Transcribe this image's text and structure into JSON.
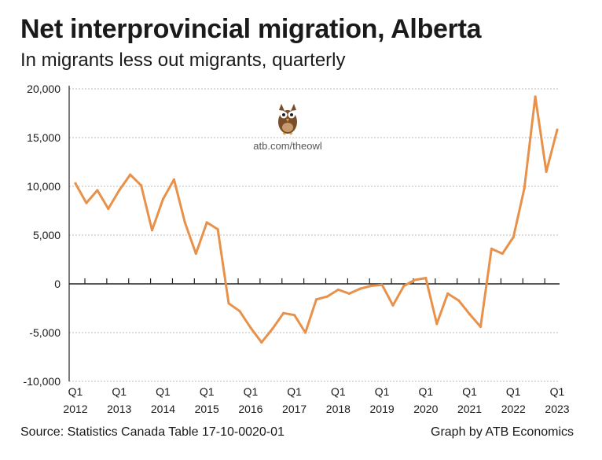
{
  "header": {
    "title": "Net interprovincial migration, Alberta",
    "subtitle": "In migrants less out migrants, quarterly"
  },
  "footer": {
    "source": "Source: Statistics Canada Table 17-10-0020-01",
    "credit": "Graph by ATB Economics"
  },
  "watermark": {
    "icon": "owl-icon",
    "text": "atb.com/theowl"
  },
  "colors": {
    "line": "#E8914A",
    "grid": "#bdbdbd",
    "axis": "#222222"
  },
  "chart_data": {
    "type": "line",
    "title": "Net interprovincial migration, Alberta",
    "subtitle": "In migrants less out migrants, quarterly",
    "xlabel": "",
    "ylabel": "",
    "ylim": [
      -10000,
      20000
    ],
    "yticks": [
      20000,
      15000,
      10000,
      5000,
      0,
      -5000,
      -10000
    ],
    "ytick_labels": [
      "20,000",
      "15,000",
      "10,000",
      "5,000",
      "0",
      "-5,000",
      "-10,000"
    ],
    "grid": true,
    "x_tick_labels": [
      {
        "q": "Q1",
        "year": "2012"
      },
      {
        "q": "Q1",
        "year": "2013"
      },
      {
        "q": "Q1",
        "year": "2014"
      },
      {
        "q": "Q1",
        "year": "2015"
      },
      {
        "q": "Q1",
        "year": "2016"
      },
      {
        "q": "Q1",
        "year": "2017"
      },
      {
        "q": "Q1",
        "year": "2018"
      },
      {
        "q": "Q1",
        "year": "2019"
      },
      {
        "q": "Q1",
        "year": "2020"
      },
      {
        "q": "Q1",
        "year": "2021"
      },
      {
        "q": "Q1",
        "year": "2022"
      },
      {
        "q": "Q1",
        "year": "2023"
      }
    ],
    "series": [
      {
        "values": [
          10300,
          8300,
          9600,
          7700,
          9600,
          11200,
          10100,
          5500,
          8700,
          10700,
          6300,
          3100,
          6300,
          5600,
          -2000,
          -2800,
          -4500,
          -6000,
          -4600,
          -3000,
          -3200,
          -5000,
          -1600,
          -1300,
          -600,
          -1000,
          -500,
          -200,
          -100,
          -2200,
          -200,
          400,
          600,
          -4100,
          -1000,
          -1700,
          -3100,
          -4400,
          3600,
          3100,
          4800,
          9800,
          19200,
          11500,
          15800
        ]
      }
    ]
  }
}
